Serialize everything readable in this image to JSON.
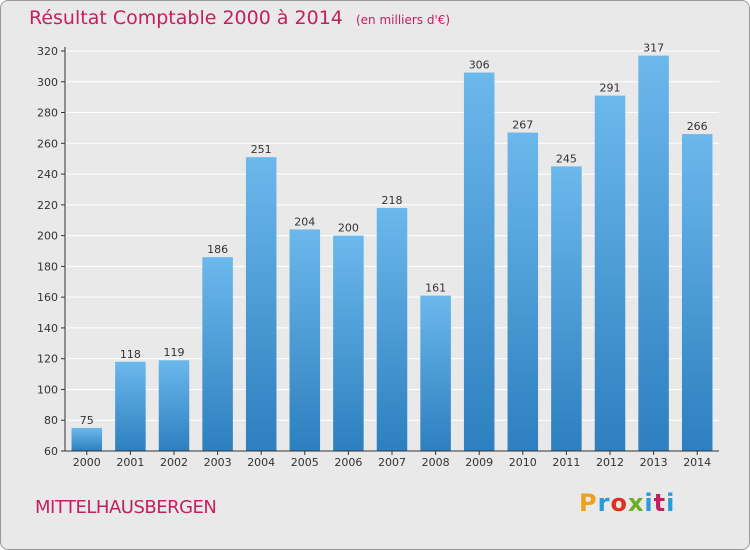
{
  "header": {
    "title": "Résultat Comptable 2000 à 2014",
    "subtitle": "(en milliers d'€)"
  },
  "footer": {
    "city": "MITTELHAUSBERGEN",
    "brand": "Proxiti",
    "brand_colors": [
      "#f0a020",
      "#2a9ad8",
      "#e03020",
      "#6ab023",
      "#2a9ad8",
      "#c4205f",
      "#2a9ad8"
    ]
  },
  "colors": {
    "title": "#c4205f",
    "background": "#e9e9e9",
    "bar_top": "#6bb8ec",
    "bar_bottom": "#2d7fbf",
    "grid": "#ffffff",
    "axis": "#333333"
  },
  "chart_data": {
    "type": "bar",
    "title": "Résultat Comptable 2000 à 2014",
    "subtitle": "(en milliers d'€)",
    "categories": [
      "2000",
      "2001",
      "2002",
      "2003",
      "2004",
      "2005",
      "2006",
      "2007",
      "2008",
      "2009",
      "2010",
      "2011",
      "2012",
      "2013",
      "2014"
    ],
    "values": [
      75,
      118,
      119,
      186,
      251,
      204,
      200,
      218,
      161,
      306,
      267,
      245,
      291,
      317,
      266
    ],
    "ylim": [
      60,
      320
    ],
    "yticks": [
      60,
      80,
      100,
      120,
      140,
      160,
      180,
      200,
      220,
      240,
      260,
      280,
      300,
      320
    ],
    "grid": true,
    "xlabel": "",
    "ylabel": ""
  }
}
